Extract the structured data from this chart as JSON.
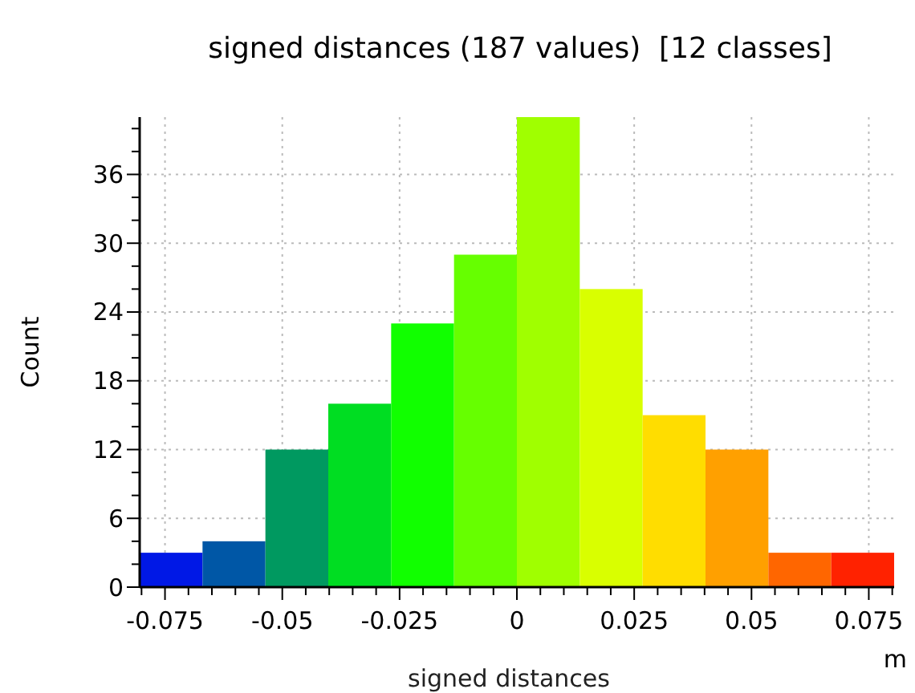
{
  "chart_data": {
    "type": "histogram",
    "title": "signed distances (187 values)  [12 classes]",
    "xlabel": "signed distances",
    "ylabel": "Count",
    "annotations": [
      "m"
    ],
    "bins": [
      -0.0804,
      -0.067,
      -0.0536,
      -0.0402,
      -0.0268,
      -0.0134,
      0,
      0.0134,
      0.0268,
      0.0402,
      0.0536,
      0.067,
      0.0804
    ],
    "values": [
      3,
      4,
      12,
      16,
      23,
      29,
      41,
      26,
      15,
      12,
      3,
      3
    ],
    "colors": [
      "#0018e6",
      "#0057a6",
      "#009960",
      "#00dd22",
      "#11ff00",
      "#66ff00",
      "#a0ff00",
      "#d9ff00",
      "#ffdd00",
      "#ffa000",
      "#ff6600",
      "#ff2200"
    ],
    "xlim": [
      -0.0804,
      0.0804
    ],
    "ylim": [
      0,
      41
    ],
    "xticks": [
      {
        "value": -0.08,
        "label": null
      },
      -0.075,
      {
        "value": -0.07,
        "label": null
      },
      {
        "value": -0.065,
        "label": null
      },
      {
        "value": -0.06,
        "label": null
      },
      {
        "value": -0.055,
        "label": null
      },
      -0.05,
      {
        "value": -0.045,
        "label": null
      },
      {
        "value": -0.04,
        "label": null
      },
      {
        "value": -0.035,
        "label": null
      },
      {
        "value": -0.03,
        "label": null
      },
      -0.025,
      {
        "value": -0.02,
        "label": null
      },
      {
        "value": -0.015,
        "label": null
      },
      {
        "value": -0.01,
        "label": null
      },
      {
        "value": -0.005,
        "label": null
      },
      0,
      {
        "value": 0.005,
        "label": null
      },
      {
        "value": 0.01,
        "label": null
      },
      {
        "value": 0.015,
        "label": null
      },
      {
        "value": 0.02,
        "label": null
      },
      0.025,
      {
        "value": 0.03,
        "label": null
      },
      {
        "value": 0.035,
        "label": null
      },
      {
        "value": 0.04,
        "label": null
      },
      {
        "value": 0.045,
        "label": null
      },
      0.05,
      {
        "value": 0.055,
        "label": null
      },
      {
        "value": 0.06,
        "label": null
      },
      {
        "value": 0.065,
        "label": null
      },
      {
        "value": 0.07,
        "label": null
      },
      0.075,
      {
        "value": 0.08,
        "label": null
      }
    ],
    "yticks": [
      0,
      {
        "value": 2,
        "label": null
      },
      {
        "value": 4,
        "label": null
      },
      6,
      {
        "value": 8,
        "label": null
      },
      {
        "value": 10,
        "label": null
      },
      12,
      {
        "value": 14,
        "label": null
      },
      {
        "value": 16,
        "label": null
      },
      18,
      {
        "value": 20,
        "label": null
      },
      {
        "value": 22,
        "label": null
      },
      24,
      {
        "value": 26,
        "label": null
      },
      {
        "value": 28,
        "label": null
      },
      30,
      {
        "value": 32,
        "label": null
      },
      {
        "value": 34,
        "label": null
      },
      36,
      {
        "value": 38,
        "label": null
      },
      {
        "value": 40,
        "label": null
      }
    ],
    "grid": true
  }
}
